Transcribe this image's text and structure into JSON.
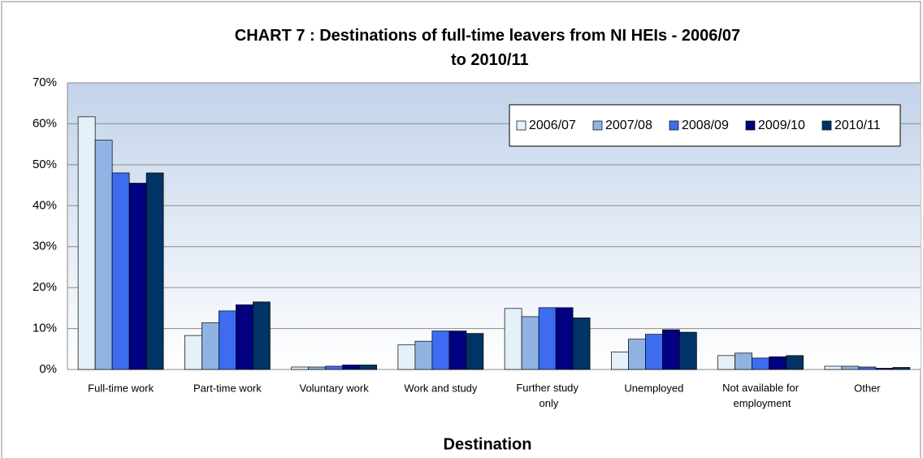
{
  "chart_data": {
    "type": "bar",
    "title": "CHART 7 : Destinations of full-time leavers from NI HEIs - 2006/07 to 2010/11",
    "x_label": "Destination",
    "categories": [
      "Full-time work",
      "Part-time work",
      "Voluntary work",
      "Work and study",
      "Further study only",
      "Unemployed",
      "Not available for employment",
      "Other"
    ],
    "series": [
      {
        "name": "2006/07",
        "color": "#e4f1f8",
        "values": [
          61.7,
          8.3,
          0.6,
          6.0,
          14.9,
          4.3,
          3.4,
          0.8
        ]
      },
      {
        "name": "2007/08",
        "color": "#8fb4e3",
        "values": [
          56.0,
          11.4,
          0.6,
          6.9,
          12.9,
          7.4,
          4.0,
          0.8
        ]
      },
      {
        "name": "2008/09",
        "color": "#3d6cf0",
        "values": [
          48.0,
          14.3,
          0.8,
          9.4,
          15.1,
          8.6,
          2.8,
          0.6
        ]
      },
      {
        "name": "2009/10",
        "color": "#000080",
        "values": [
          45.5,
          15.8,
          1.1,
          9.4,
          15.1,
          9.7,
          3.1,
          0.3
        ]
      },
      {
        "name": "2010/11",
        "color": "#003366",
        "values": [
          48.0,
          16.5,
          1.1,
          8.8,
          12.6,
          9.1,
          3.4,
          0.5
        ]
      }
    ],
    "ylim": [
      0,
      70
    ],
    "yticks": [
      {
        "value": 0,
        "label": "0%"
      },
      {
        "value": 10,
        "label": "10%"
      },
      {
        "value": 20,
        "label": "20%"
      },
      {
        "value": 30,
        "label": "30%"
      },
      {
        "value": 40,
        "label": "40%"
      },
      {
        "value": 50,
        "label": "50%"
      },
      {
        "value": 60,
        "label": "60%"
      },
      {
        "value": 70,
        "label": "70%"
      }
    ],
    "grid": true,
    "legend": "top-right"
  }
}
